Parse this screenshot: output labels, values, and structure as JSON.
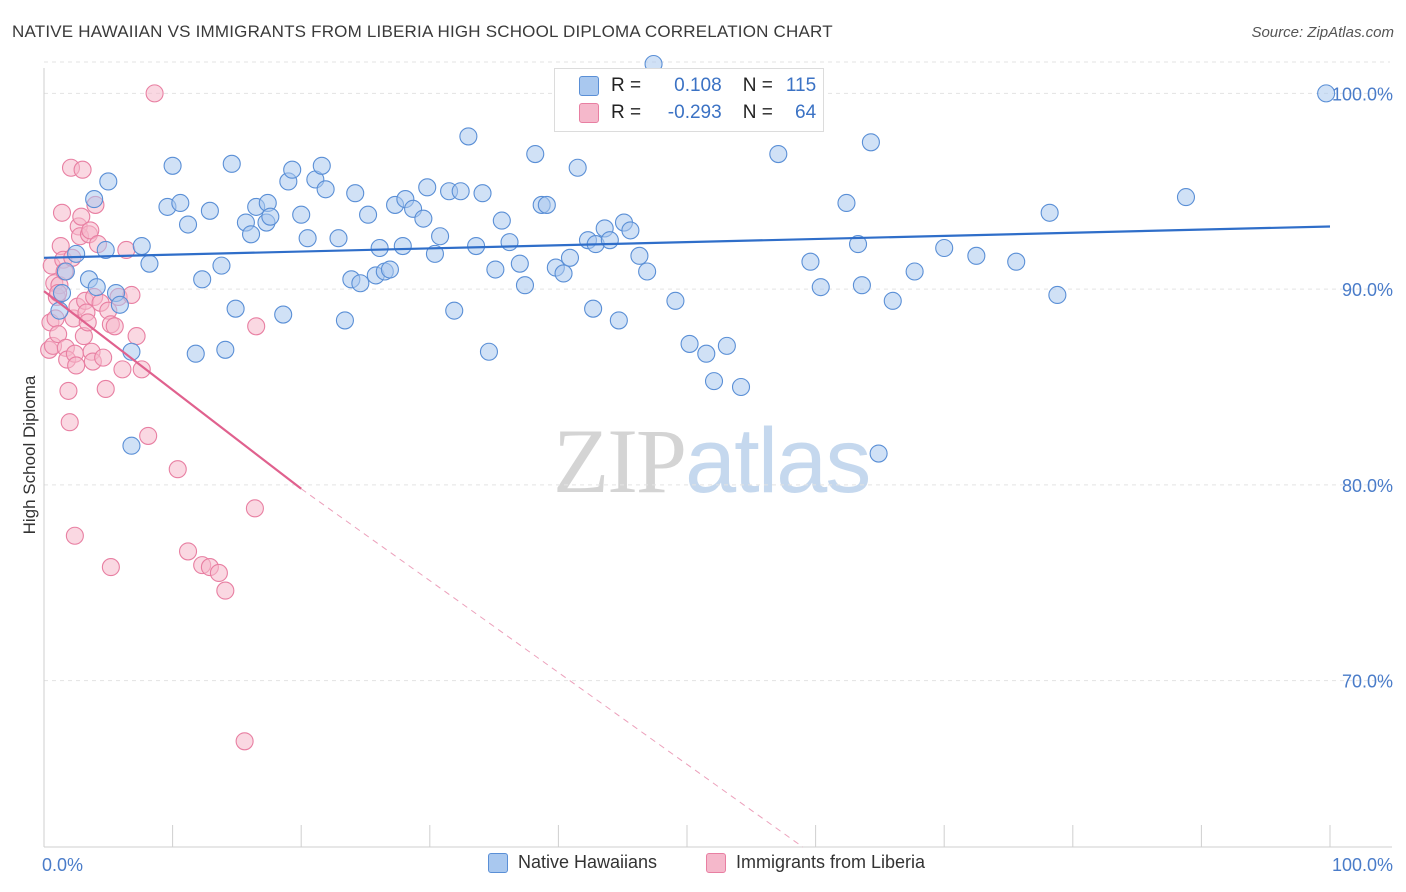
{
  "header": {
    "title": "NATIVE HAWAIIAN VS IMMIGRANTS FROM LIBERIA HIGH SCHOOL DIPLOMA CORRELATION CHART",
    "source": "Source: ZipAtlas.com"
  },
  "watermark": {
    "zip": "ZIP",
    "atlas": "atlas"
  },
  "legend": {
    "rows": [
      {
        "r_label": "R =",
        "r_value": "0.108",
        "n_label": "N =",
        "n_value": "115"
      },
      {
        "r_label": "R =",
        "r_value": "-0.293",
        "n_label": "N =",
        "n_value": "64"
      }
    ]
  },
  "colors": {
    "blue_fill": "#a9c8ef",
    "blue_stroke": "#5a8fd6",
    "blue_line": "#2f6ec9",
    "pink_fill": "#f5b8cb",
    "pink_stroke": "#e87fa2",
    "pink_line": "#e0618e",
    "tick_text": "#4a7cc9",
    "grid": "#e3e3e3"
  },
  "chart_data": {
    "type": "scatter",
    "title": "NATIVE HAWAIIAN VS IMMIGRANTS FROM LIBERIA HIGH SCHOOL DIPLOMA CORRELATION CHART",
    "xlabel": "",
    "ylabel": "High School Diploma",
    "xlim": [
      0,
      100
    ],
    "ylim": [
      61.5,
      101.5
    ],
    "x_tick_labels": [
      "0.0%",
      "100.0%"
    ],
    "y_ticks": [
      70,
      80,
      90,
      100
    ],
    "y_tick_labels": [
      "70.0%",
      "80.0%",
      "90.0%",
      "100.0%"
    ],
    "grid": true,
    "legend_position": "top-center",
    "series": [
      {
        "name": "Native Hawaiians",
        "r": 0.108,
        "n": 115,
        "trend": {
          "x": [
            0,
            100
          ],
          "y": [
            91.6,
            93.2
          ],
          "dashed_from": null
        },
        "points": [
          [
            1.7,
            90.9
          ],
          [
            1.2,
            88.9
          ],
          [
            1.4,
            89.8
          ],
          [
            2.5,
            91.8
          ],
          [
            3.5,
            90.5
          ],
          [
            3.9,
            94.6
          ],
          [
            4.8,
            92.0
          ],
          [
            5.0,
            95.5
          ],
          [
            5.6,
            89.8
          ],
          [
            5.9,
            89.2
          ],
          [
            4.1,
            90.1
          ],
          [
            6.8,
            86.8
          ],
          [
            6.8,
            82.0
          ],
          [
            7.6,
            92.2
          ],
          [
            8.2,
            91.3
          ],
          [
            9.6,
            94.2
          ],
          [
            10.6,
            94.4
          ],
          [
            10.0,
            96.3
          ],
          [
            11.2,
            93.3
          ],
          [
            11.8,
            86.7
          ],
          [
            12.3,
            90.5
          ],
          [
            12.9,
            94.0
          ],
          [
            13.8,
            91.2
          ],
          [
            14.1,
            86.9
          ],
          [
            14.6,
            96.4
          ],
          [
            14.9,
            89.0
          ],
          [
            15.7,
            93.4
          ],
          [
            16.1,
            92.8
          ],
          [
            16.5,
            94.2
          ],
          [
            17.3,
            93.4
          ],
          [
            17.4,
            94.4
          ],
          [
            17.6,
            93.7
          ],
          [
            18.6,
            88.7
          ],
          [
            19.0,
            95.5
          ],
          [
            19.3,
            96.1
          ],
          [
            20.0,
            93.8
          ],
          [
            20.5,
            92.6
          ],
          [
            21.1,
            95.6
          ],
          [
            21.6,
            96.3
          ],
          [
            21.9,
            95.1
          ],
          [
            22.9,
            92.6
          ],
          [
            23.4,
            88.4
          ],
          [
            23.9,
            90.5
          ],
          [
            24.2,
            94.9
          ],
          [
            24.6,
            90.3
          ],
          [
            25.2,
            93.8
          ],
          [
            25.8,
            90.7
          ],
          [
            26.1,
            92.1
          ],
          [
            26.5,
            90.9
          ],
          [
            26.9,
            91.0
          ],
          [
            27.3,
            94.3
          ],
          [
            27.9,
            92.2
          ],
          [
            28.1,
            94.6
          ],
          [
            28.7,
            94.1
          ],
          [
            29.5,
            93.6
          ],
          [
            29.8,
            95.2
          ],
          [
            30.4,
            91.8
          ],
          [
            30.8,
            92.7
          ],
          [
            31.5,
            95.0
          ],
          [
            31.9,
            88.9
          ],
          [
            32.4,
            95.0
          ],
          [
            33.0,
            97.8
          ],
          [
            33.6,
            92.2
          ],
          [
            34.1,
            94.9
          ],
          [
            34.6,
            86.8
          ],
          [
            35.1,
            91.0
          ],
          [
            35.6,
            93.5
          ],
          [
            36.2,
            92.4
          ],
          [
            37.0,
            91.3
          ],
          [
            37.4,
            90.2
          ],
          [
            38.2,
            96.9
          ],
          [
            38.7,
            94.3
          ],
          [
            39.1,
            94.3
          ],
          [
            39.8,
            91.1
          ],
          [
            40.4,
            90.8
          ],
          [
            40.9,
            91.6
          ],
          [
            41.5,
            96.2
          ],
          [
            42.3,
            92.5
          ],
          [
            42.7,
            89.0
          ],
          [
            42.9,
            92.3
          ],
          [
            43.6,
            93.1
          ],
          [
            44.0,
            92.5
          ],
          [
            44.7,
            88.4
          ],
          [
            45.1,
            93.4
          ],
          [
            45.6,
            93.0
          ],
          [
            46.3,
            91.7
          ],
          [
            46.9,
            90.9
          ],
          [
            47.4,
            102.5
          ],
          [
            49.1,
            89.4
          ],
          [
            50.2,
            87.2
          ],
          [
            51.5,
            86.7
          ],
          [
            52.1,
            85.3
          ],
          [
            53.1,
            87.1
          ],
          [
            54.2,
            85.0
          ],
          [
            57.1,
            96.9
          ],
          [
            59.0,
            100.1
          ],
          [
            59.8,
            98.9
          ],
          [
            59.6,
            91.4
          ],
          [
            60.4,
            90.1
          ],
          [
            62.4,
            94.4
          ],
          [
            63.3,
            92.3
          ],
          [
            63.6,
            90.2
          ],
          [
            64.3,
            97.5
          ],
          [
            64.9,
            81.6
          ],
          [
            66.0,
            89.4
          ],
          [
            67.7,
            90.9
          ],
          [
            70.0,
            92.1
          ],
          [
            72.5,
            91.7
          ],
          [
            75.6,
            91.4
          ],
          [
            78.2,
            93.9
          ],
          [
            78.8,
            89.7
          ],
          [
            88.8,
            94.7
          ],
          [
            99.7,
            100.0
          ]
        ]
      },
      {
        "name": "Immigrants from Liberia",
        "r": -0.293,
        "n": 64,
        "trend": {
          "x": [
            0,
            20,
            59
          ],
          "y": [
            89.9,
            79.8,
            61.5
          ],
          "dashed_from": 20
        },
        "points": [
          [
            0.4,
            86.9
          ],
          [
            0.5,
            88.3
          ],
          [
            0.6,
            91.2
          ],
          [
            0.7,
            87.1
          ],
          [
            0.8,
            90.3
          ],
          [
            0.9,
            88.5
          ],
          [
            1.0,
            89.6
          ],
          [
            1.1,
            87.7
          ],
          [
            1.2,
            90.2
          ],
          [
            1.3,
            92.2
          ],
          [
            1.4,
            93.9
          ],
          [
            1.5,
            91.5
          ],
          [
            1.6,
            90.9
          ],
          [
            1.7,
            87.0
          ],
          [
            1.8,
            86.4
          ],
          [
            1.9,
            84.8
          ],
          [
            2.0,
            83.2
          ],
          [
            2.1,
            96.2
          ],
          [
            2.2,
            91.6
          ],
          [
            2.3,
            88.5
          ],
          [
            2.4,
            86.7
          ],
          [
            2.5,
            86.1
          ],
          [
            2.6,
            89.1
          ],
          [
            2.7,
            93.2
          ],
          [
            2.8,
            92.7
          ],
          [
            2.9,
            93.7
          ],
          [
            3.0,
            96.1
          ],
          [
            3.1,
            87.6
          ],
          [
            3.2,
            89.4
          ],
          [
            3.3,
            88.8
          ],
          [
            3.4,
            88.3
          ],
          [
            3.5,
            92.8
          ],
          [
            3.6,
            93.0
          ],
          [
            3.7,
            86.8
          ],
          [
            3.8,
            86.3
          ],
          [
            3.9,
            89.6
          ],
          [
            4.0,
            94.3
          ],
          [
            4.2,
            92.3
          ],
          [
            4.4,
            89.3
          ],
          [
            4.6,
            86.5
          ],
          [
            4.8,
            84.9
          ],
          [
            5.0,
            88.9
          ],
          [
            5.2,
            88.2
          ],
          [
            5.5,
            88.1
          ],
          [
            5.8,
            89.6
          ],
          [
            6.1,
            85.9
          ],
          [
            6.4,
            92.0
          ],
          [
            6.8,
            89.7
          ],
          [
            7.2,
            87.6
          ],
          [
            7.6,
            85.9
          ],
          [
            8.1,
            82.5
          ],
          [
            8.6,
            100.0
          ],
          [
            10.4,
            80.8
          ],
          [
            11.2,
            76.6
          ],
          [
            12.3,
            75.9
          ],
          [
            12.9,
            75.8
          ],
          [
            13.6,
            75.5
          ],
          [
            14.1,
            74.6
          ],
          [
            15.6,
            66.9
          ],
          [
            16.4,
            78.8
          ],
          [
            16.5,
            88.1
          ],
          [
            2.4,
            77.4
          ],
          [
            5.2,
            75.8
          ],
          [
            1.1,
            89.8
          ]
        ]
      }
    ]
  }
}
